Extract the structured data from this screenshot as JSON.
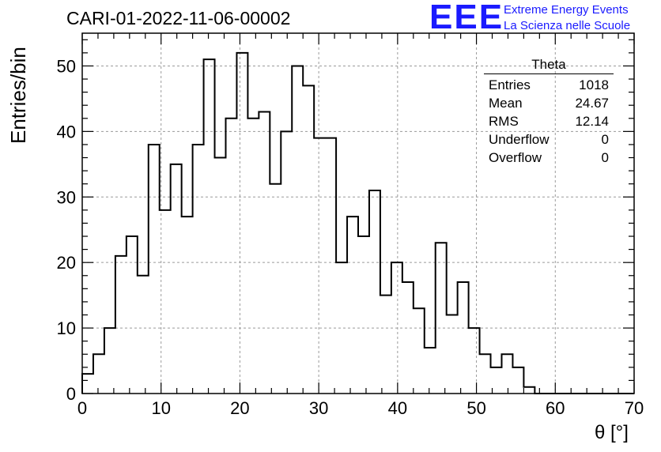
{
  "title": "CARI-01-2022-11-06-00002",
  "logo": {
    "letters": "EEE",
    "line1": "Extreme Energy Events",
    "line2": "La Scienza nelle Scuole"
  },
  "stats_box": {
    "title": "Theta",
    "rows": [
      {
        "label": "Entries",
        "value": "1018"
      },
      {
        "label": "Mean",
        "value": "24.67"
      },
      {
        "label": "RMS",
        "value": "12.14"
      },
      {
        "label": "Underflow",
        "value": "0"
      },
      {
        "label": "Overflow",
        "value": "0"
      }
    ]
  },
  "chart_data": {
    "type": "bar",
    "histogram": true,
    "xlabel": "θ [°]",
    "ylabel": "Entries/bin",
    "xlim": [
      0,
      70
    ],
    "ylim": [
      0,
      55
    ],
    "grid": true,
    "bin_width": 1.4,
    "x_ticks": [
      0,
      10,
      20,
      30,
      40,
      50,
      60,
      70
    ],
    "y_ticks": [
      0,
      10,
      20,
      30,
      40,
      50
    ],
    "values": [
      3,
      6,
      10,
      21,
      24,
      18,
      38,
      28,
      35,
      27,
      38,
      51,
      36,
      42,
      52,
      42,
      43,
      32,
      40,
      50,
      47,
      39,
      39,
      20,
      27,
      24,
      31,
      15,
      20,
      17,
      13,
      7,
      23,
      12,
      17,
      10,
      6,
      4,
      6,
      4,
      1,
      0,
      0,
      0,
      0,
      0,
      0,
      0,
      0,
      0
    ]
  },
  "colors": {
    "logo": "#1a1aff",
    "line": "#000000",
    "grid": "#9a9a9a"
  }
}
